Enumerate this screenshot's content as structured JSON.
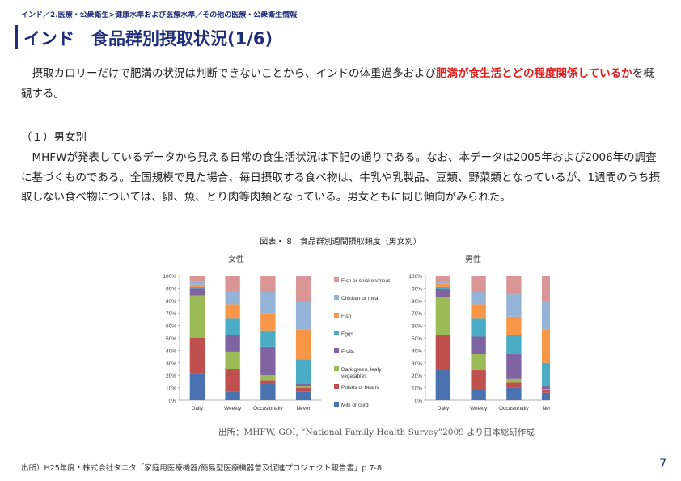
{
  "header": {
    "breadcrumb": "インド／2.医療・公衆衛生>健康水準および医療水準／その他の医療・公衆衛生情報",
    "title": "インド　食品群別摂取状況(1/6)"
  },
  "intro": {
    "before": "　摂取カロリーだけで肥満の状況は判断できないことから、インドの体重過多および",
    "highlight": "肥満が食生活とどの程度関係しているか",
    "after": "を概観する。"
  },
  "section": {
    "heading": "（１）男女別",
    "body": "　MHFWが発表しているデータから見える日常の食生活状況は下記の通りである。なお、本データは2005年および2006年の調査に基づくものである。全国規模で見た場合、毎日摂取する食べ物は、牛乳や乳製品、豆類、野菜類となっているが、1週間のうち摂取しない食べ物については、卵、魚、とり肉等肉類となっている。男女ともに同じ傾向がみられた。"
  },
  "figure": {
    "caption": "図表・ 8　食品群別週間摂取頻度（男女別）",
    "female_label": "女性",
    "male_label": "男性",
    "source": "出所：MHFW, GOI, “National Family Health Survey”2009 より日本総研作成"
  },
  "footer": {
    "source": "出所）H25年度・株式会社タニタ「家庭用医療機器/簡易型医療機器普及促進プロジェクト報告書」p.7-8",
    "page_number": "7"
  },
  "chart_data": [
    {
      "type": "bar",
      "stacked": true,
      "subtitle": "女性",
      "categories": [
        "Daily",
        "Weekly",
        "Occasionally",
        "Never"
      ],
      "ylim": [
        0,
        100
      ],
      "yticks": [
        "0%",
        "10%",
        "20%",
        "30%",
        "40%",
        "50%",
        "60%",
        "70%",
        "80%",
        "90%",
        "100%"
      ],
      "legend_position": "right",
      "series": [
        {
          "name": "Milk or curd",
          "color": "#4a72b0",
          "values": [
            21,
            7,
            13,
            7
          ]
        },
        {
          "name": "Pulses or beans",
          "color": "#c0504d",
          "values": [
            29,
            18,
            3,
            3
          ]
        },
        {
          "name": "Dark green, leafy vegetables",
          "color": "#9bbb59",
          "values": [
            34,
            14,
            4,
            1
          ]
        },
        {
          "name": "Fruits",
          "color": "#8064a2",
          "values": [
            6,
            13,
            23,
            2
          ]
        },
        {
          "name": "Eggs",
          "color": "#4bacc6",
          "values": [
            1,
            14,
            13,
            20
          ]
        },
        {
          "name": "Fish",
          "color": "#f79646",
          "values": [
            2,
            11,
            14,
            24
          ]
        },
        {
          "name": "Chicken or meat",
          "color": "#95b3d7",
          "values": [
            2,
            10,
            17,
            22
          ]
        },
        {
          "name": "Fish or chicken/meat",
          "color": "#d99694",
          "values": [
            5,
            13,
            13,
            21
          ]
        }
      ]
    },
    {
      "type": "bar",
      "stacked": true,
      "subtitle": "男性",
      "categories": [
        "Daily",
        "Weekly",
        "Occasionally",
        "Never"
      ],
      "ylim": [
        0,
        100
      ],
      "yticks": [
        "0%",
        "10%",
        "20%",
        "30%",
        "40%",
        "50%",
        "60%",
        "70%",
        "80%",
        "90%",
        "100%"
      ],
      "series": [
        {
          "name": "Milk or curd",
          "color": "#4a72b0",
          "values": [
            24,
            8,
            10,
            6
          ]
        },
        {
          "name": "Pulses or beans",
          "color": "#c0504d",
          "values": [
            28,
            16,
            4,
            2
          ]
        },
        {
          "name": "Dark green, leafy vegetables",
          "color": "#9bbb59",
          "values": [
            31,
            13,
            3,
            1
          ]
        },
        {
          "name": "Fruits",
          "color": "#8064a2",
          "values": [
            6,
            14,
            20,
            2
          ]
        },
        {
          "name": "Eggs",
          "color": "#4bacc6",
          "values": [
            2,
            15,
            15,
            19
          ]
        },
        {
          "name": "Fish",
          "color": "#f79646",
          "values": [
            3,
            11,
            15,
            27
          ]
        },
        {
          "name": "Chicken or meat",
          "color": "#95b3d7",
          "values": [
            2,
            10,
            18,
            22
          ]
        },
        {
          "name": "Fish or chicken/meat",
          "color": "#d99694",
          "values": [
            4,
            13,
            15,
            21
          ]
        }
      ]
    }
  ]
}
